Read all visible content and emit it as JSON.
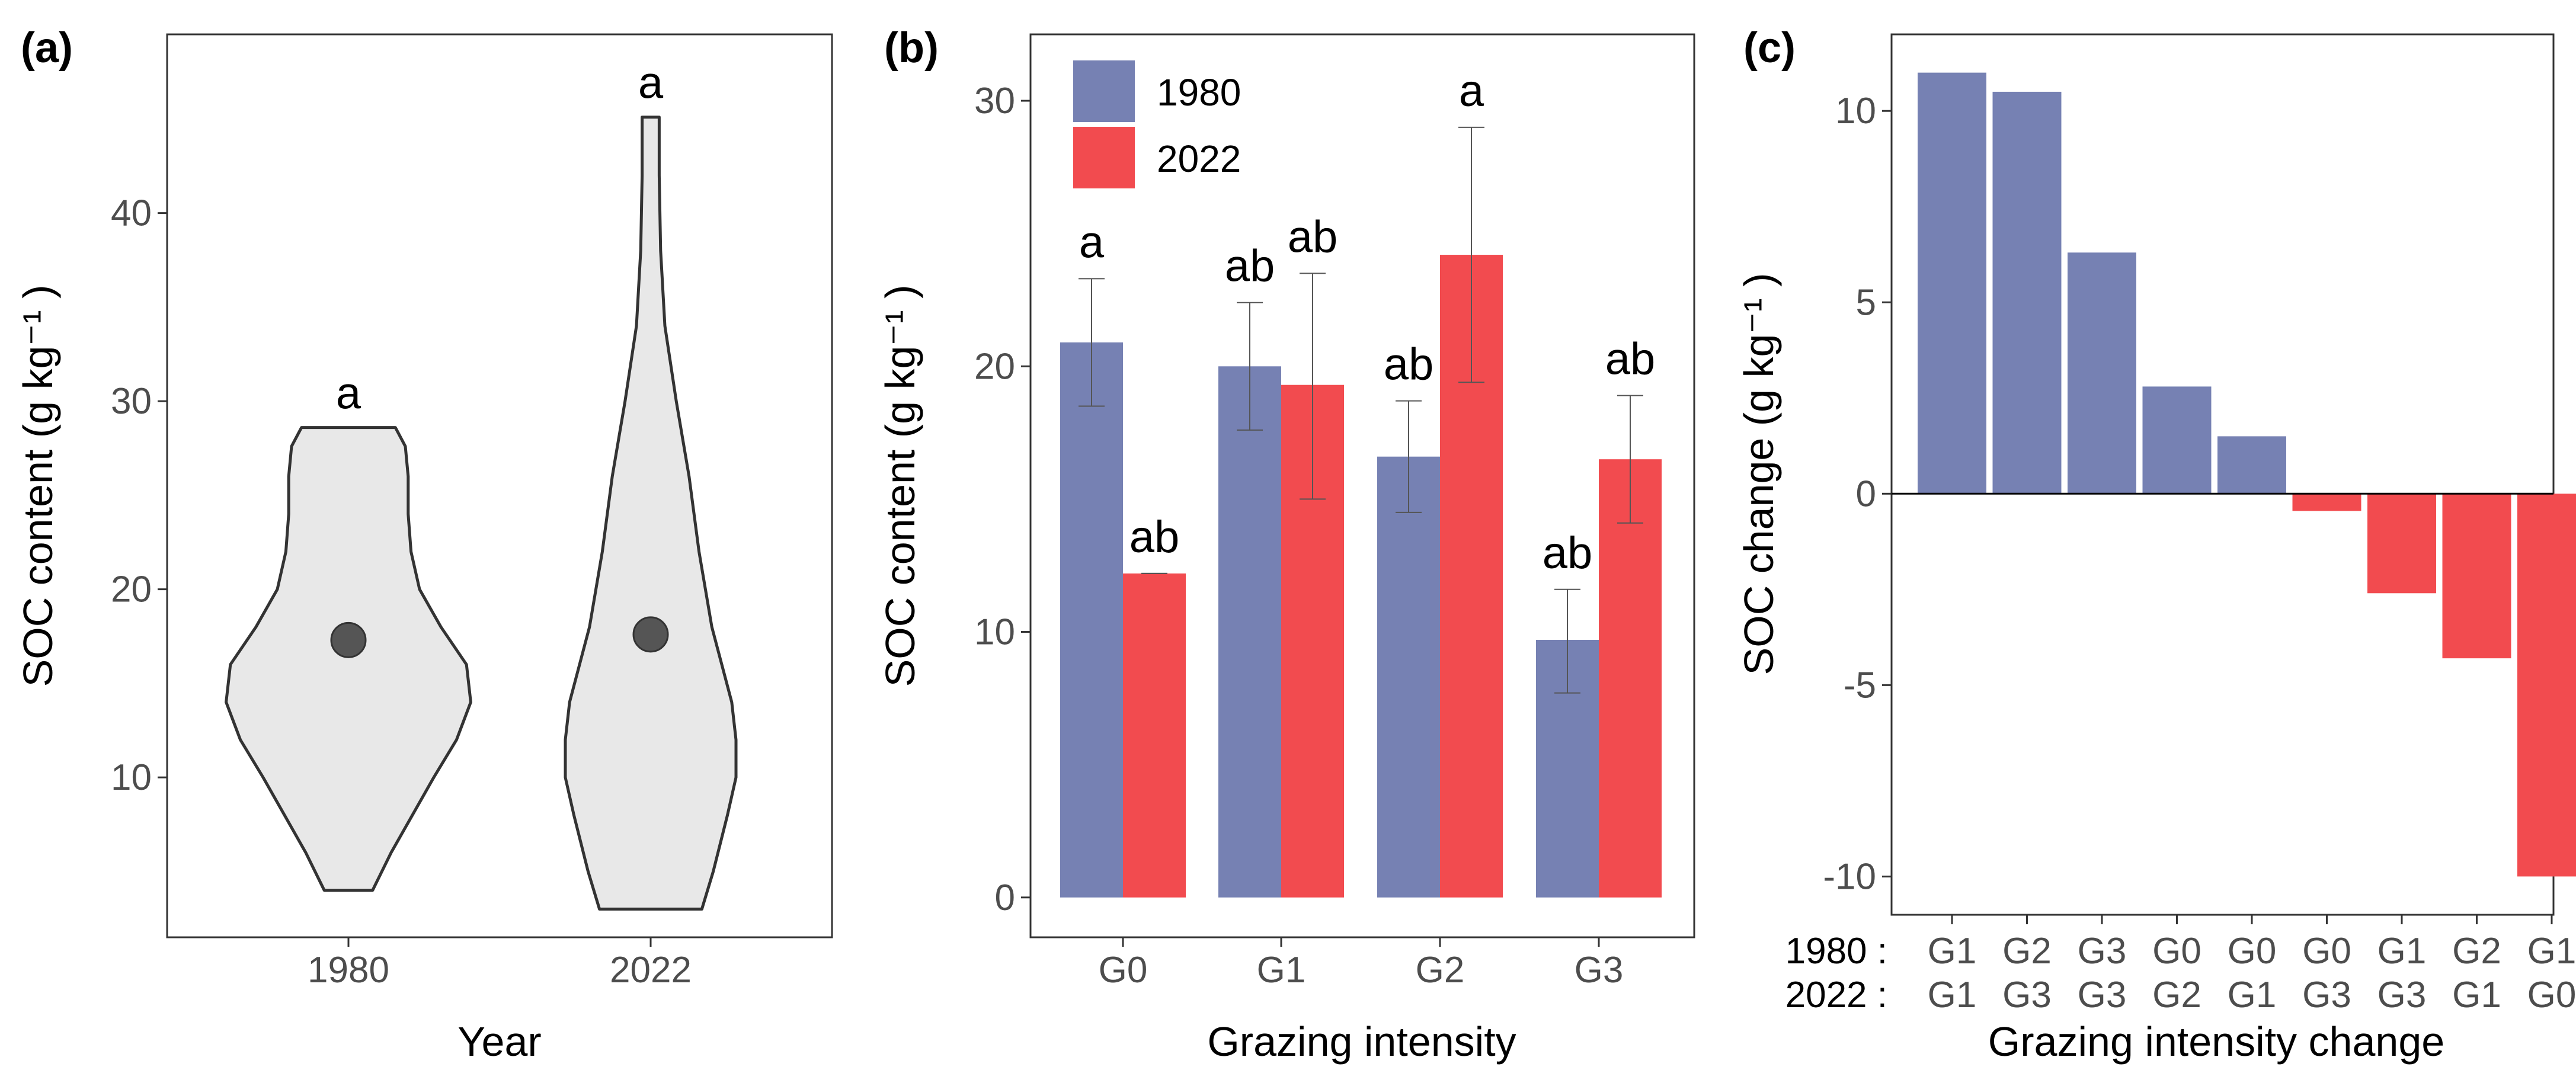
{
  "colors": {
    "c1980": "#7681b3",
    "c2022": "#f24b4f",
    "violin_fill": "#e8e8e8",
    "violin_stroke": "#333333",
    "point": "#555555"
  },
  "chart_data": [
    {
      "panel": "(a)",
      "type": "violin",
      "xlabel": "Year",
      "ylabel": "SOC content (g kg⁻¹ )",
      "ylim": [
        1.5,
        49.5
      ],
      "yticks": [
        10,
        20,
        30,
        40
      ],
      "categories": [
        "1980",
        "2022"
      ],
      "series": [
        {
          "category": "1980",
          "min": 4,
          "max": 28.6,
          "mean": 17.3,
          "label": "a",
          "profile": [
            [
              4,
              0.17
            ],
            [
              6,
              0.3
            ],
            [
              8,
              0.45
            ],
            [
              10,
              0.6
            ],
            [
              12,
              0.76
            ],
            [
              14,
              0.86
            ],
            [
              16,
              0.83
            ],
            [
              18,
              0.65
            ],
            [
              20,
              0.5
            ],
            [
              22,
              0.44
            ],
            [
              24,
              0.42
            ],
            [
              26,
              0.42
            ],
            [
              27.6,
              0.4
            ],
            [
              28.6,
              0.33
            ]
          ]
        },
        {
          "category": "2022",
          "min": 3,
          "max": 45.1,
          "mean": 17.6,
          "label": "a",
          "profile": [
            [
              3,
              0.36
            ],
            [
              5,
              0.44
            ],
            [
              8,
              0.54
            ],
            [
              10,
              0.6
            ],
            [
              12,
              0.6
            ],
            [
              14,
              0.57
            ],
            [
              16,
              0.5
            ],
            [
              18,
              0.43
            ],
            [
              22,
              0.34
            ],
            [
              26,
              0.27
            ],
            [
              30,
              0.18
            ],
            [
              34,
              0.1
            ],
            [
              38,
              0.07
            ],
            [
              42,
              0.06
            ],
            [
              45.1,
              0.06
            ]
          ]
        }
      ]
    },
    {
      "panel": "(b)",
      "type": "bar",
      "xlabel": "Grazing intensity",
      "ylabel": "SOC content (g kg⁻¹ )",
      "ylim": [
        -1.5,
        32.5
      ],
      "yticks": [
        0,
        10,
        20,
        30
      ],
      "categories": [
        "G0",
        "G1",
        "G2",
        "G3"
      ],
      "legend": {
        "position": "top-left"
      },
      "series": [
        {
          "name": "1980",
          "color": "#7681b3",
          "values": [
            20.9,
            20.0,
            16.6,
            9.7
          ],
          "err_low": [
            18.5,
            17.6,
            14.5,
            7.7
          ],
          "err_high": [
            23.3,
            22.4,
            18.7,
            11.6
          ],
          "labels": [
            "a",
            "ab",
            "ab",
            "ab"
          ]
        },
        {
          "name": "2022",
          "color": "#f24b4f",
          "values": [
            12.2,
            19.3,
            24.2,
            16.5
          ],
          "err_low": [
            12.2,
            15.0,
            19.4,
            14.1
          ],
          "err_high": [
            12.2,
            23.5,
            29.0,
            18.9
          ],
          "labels": [
            "ab",
            "ab",
            "a",
            "ab"
          ]
        }
      ]
    },
    {
      "panel": "(c)",
      "type": "bar",
      "xlabel": "Grazing intensity change",
      "ylabel": "SOC change (g kg⁻¹ )",
      "ylim": [
        -11.0,
        12.0
      ],
      "yticks": [
        -10,
        -5,
        0,
        5,
        10
      ],
      "row_labels": [
        "1980 :",
        "2022 :"
      ],
      "categories_1980": [
        "G1",
        "G2",
        "G3",
        "G0",
        "G0",
        "G0",
        "G1",
        "G2",
        "G1"
      ],
      "categories_2022": [
        "G1",
        "G3",
        "G3",
        "G2",
        "G1",
        "G3",
        "G3",
        "G1",
        "G0"
      ],
      "values": [
        11.0,
        10.5,
        6.3,
        2.8,
        1.5,
        -0.45,
        -2.6,
        -4.3,
        -10.0
      ]
    }
  ]
}
